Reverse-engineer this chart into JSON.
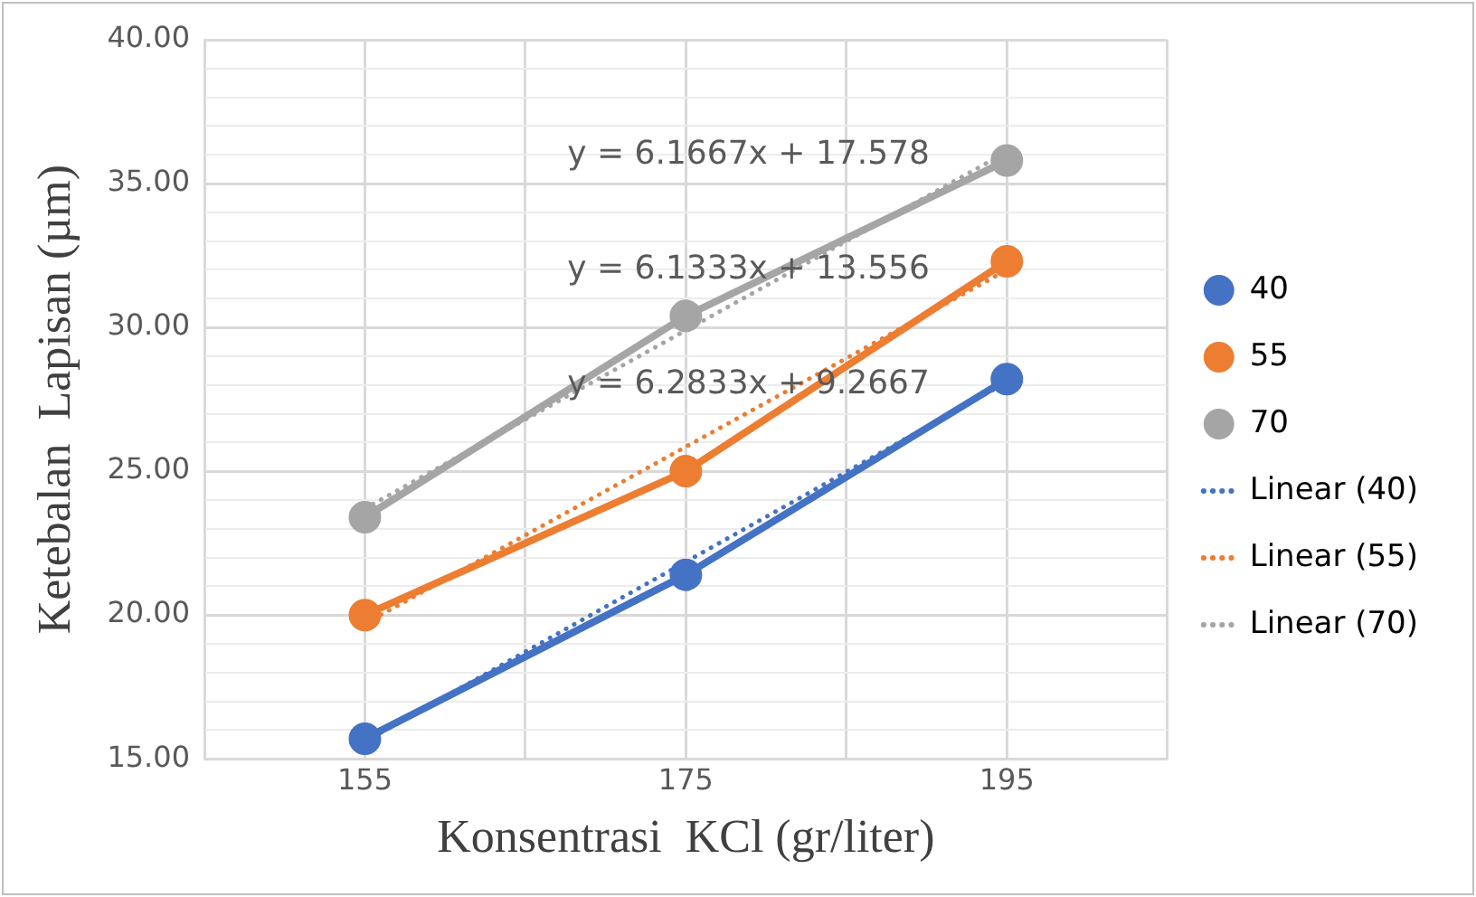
{
  "chart_data": {
    "type": "line",
    "xlabel": "Konsentrasi  KCl (gr/liter)",
    "ylabel": "Ketebalan  Lapisan (µm)",
    "xlim": [
      145,
      205
    ],
    "xticks": [
      {
        "value": 145,
        "label": null
      },
      155,
      {
        "value": 165,
        "label": null
      },
      175,
      {
        "value": 185,
        "label": null
      },
      195,
      {
        "value": 205,
        "label": null
      }
    ],
    "ylim": [
      15,
      40
    ],
    "yticks": [
      {
        "value": 15,
        "label": "15.00"
      },
      {
        "value": 16,
        "label": null
      },
      {
        "value": 17,
        "label": null
      },
      {
        "value": 18,
        "label": null
      },
      {
        "value": 19,
        "label": null
      },
      {
        "value": 20,
        "label": "20.00"
      },
      {
        "value": 21,
        "label": null
      },
      {
        "value": 22,
        "label": null
      },
      {
        "value": 23,
        "label": null
      },
      {
        "value": 24,
        "label": null
      },
      {
        "value": 25,
        "label": "25.00"
      },
      {
        "value": 26,
        "label": null
      },
      {
        "value": 27,
        "label": null
      },
      {
        "value": 28,
        "label": null
      },
      {
        "value": 29,
        "label": null
      },
      {
        "value": 30,
        "label": "30.00"
      },
      {
        "value": 31,
        "label": null
      },
      {
        "value": 32,
        "label": null
      },
      {
        "value": 33,
        "label": null
      },
      {
        "value": 34,
        "label": null
      },
      {
        "value": 35,
        "label": "35.00"
      },
      {
        "value": 36,
        "label": null
      },
      {
        "value": 37,
        "label": null
      },
      {
        "value": 38,
        "label": null
      },
      {
        "value": 39,
        "label": null
      },
      {
        "value": 40,
        "label": "40.00"
      }
    ],
    "grid": true,
    "legend": "right",
    "marker": "circle",
    "line_style": "solid",
    "series": [
      {
        "name": "40",
        "color": "#4472c4",
        "x": [
          155,
          175,
          195
        ],
        "values": [
          15.7,
          21.4,
          28.2
        ]
      },
      {
        "name": "55",
        "color": "#ed7d31",
        "x": [
          155,
          175,
          195
        ],
        "values": [
          20.0,
          25.0,
          32.3
        ]
      },
      {
        "name": "70",
        "color": "#a5a5a5",
        "x": [
          155,
          175,
          195
        ],
        "values": [
          23.4,
          30.4,
          35.8
        ]
      },
      {
        "name": "Linear (40)",
        "color": "#4472c4",
        "type": "line",
        "line_style": "dotted",
        "marker": "none",
        "x": [
          155,
          195
        ],
        "values": [
          15.6,
          28.1
        ]
      },
      {
        "name": "Linear (55)",
        "color": "#ed7d31",
        "type": "line",
        "line_style": "dotted",
        "marker": "none",
        "x": [
          155,
          195
        ],
        "values": [
          19.7,
          32.0
        ]
      },
      {
        "name": "Linear (70)",
        "color": "#a5a5a5",
        "type": "line",
        "line_style": "dotted",
        "marker": "none",
        "x": [
          155,
          195
        ],
        "values": [
          23.7,
          36.1
        ]
      }
    ],
    "annotations": [
      "y = 6.1667x + 17.578",
      "y = 6.1333x + 13.556",
      "y = 6.2833x + 9.2667"
    ]
  }
}
